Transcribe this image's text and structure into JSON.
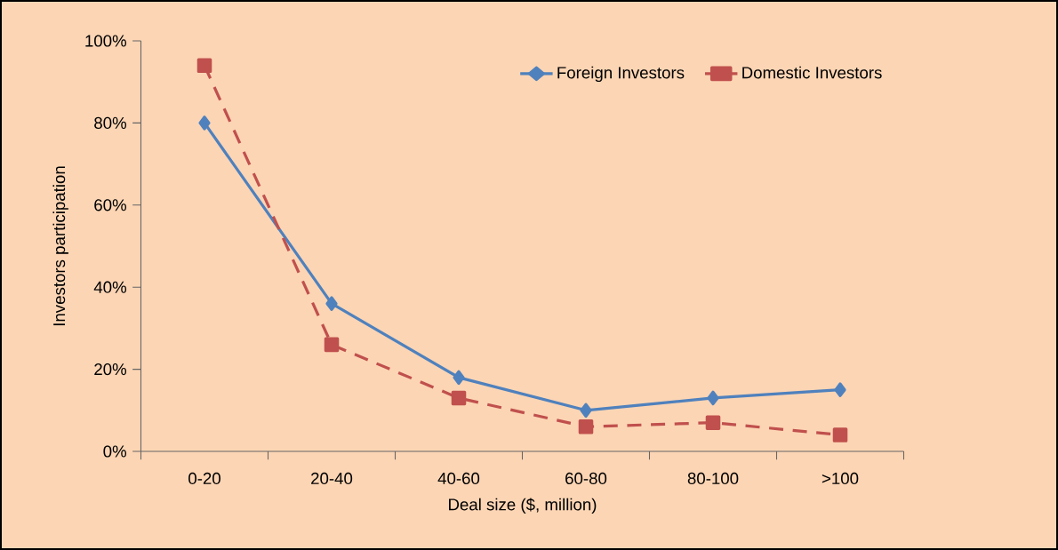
{
  "chart_data": {
    "type": "line",
    "xlabel": "Deal size ($, million)",
    "ylabel": "Investors participation",
    "categories": [
      "0-20",
      "20-40",
      "40-60",
      "60-80",
      "80-100",
      ">100"
    ],
    "series": [
      {
        "name": "Foreign Investors",
        "color": "#4f81bd",
        "values": [
          80,
          36,
          18,
          10,
          13,
          15
        ],
        "marker": "diamond",
        "line_style": "solid"
      },
      {
        "name": "Domestic Investors",
        "color": "#c0504d",
        "values": [
          94,
          26,
          13,
          6,
          7,
          4
        ],
        "marker": "square",
        "line_style": "dashed"
      }
    ],
    "ylim": [
      0,
      100
    ],
    "yticks": [
      {
        "value": 0,
        "label": "0%"
      },
      {
        "value": 20,
        "label": "20%"
      },
      {
        "value": 40,
        "label": "40%"
      },
      {
        "value": 60,
        "label": "60%"
      },
      {
        "value": 80,
        "label": "80%"
      },
      {
        "value": 100,
        "label": "100%"
      }
    ],
    "grid": false,
    "legend": "top right"
  }
}
